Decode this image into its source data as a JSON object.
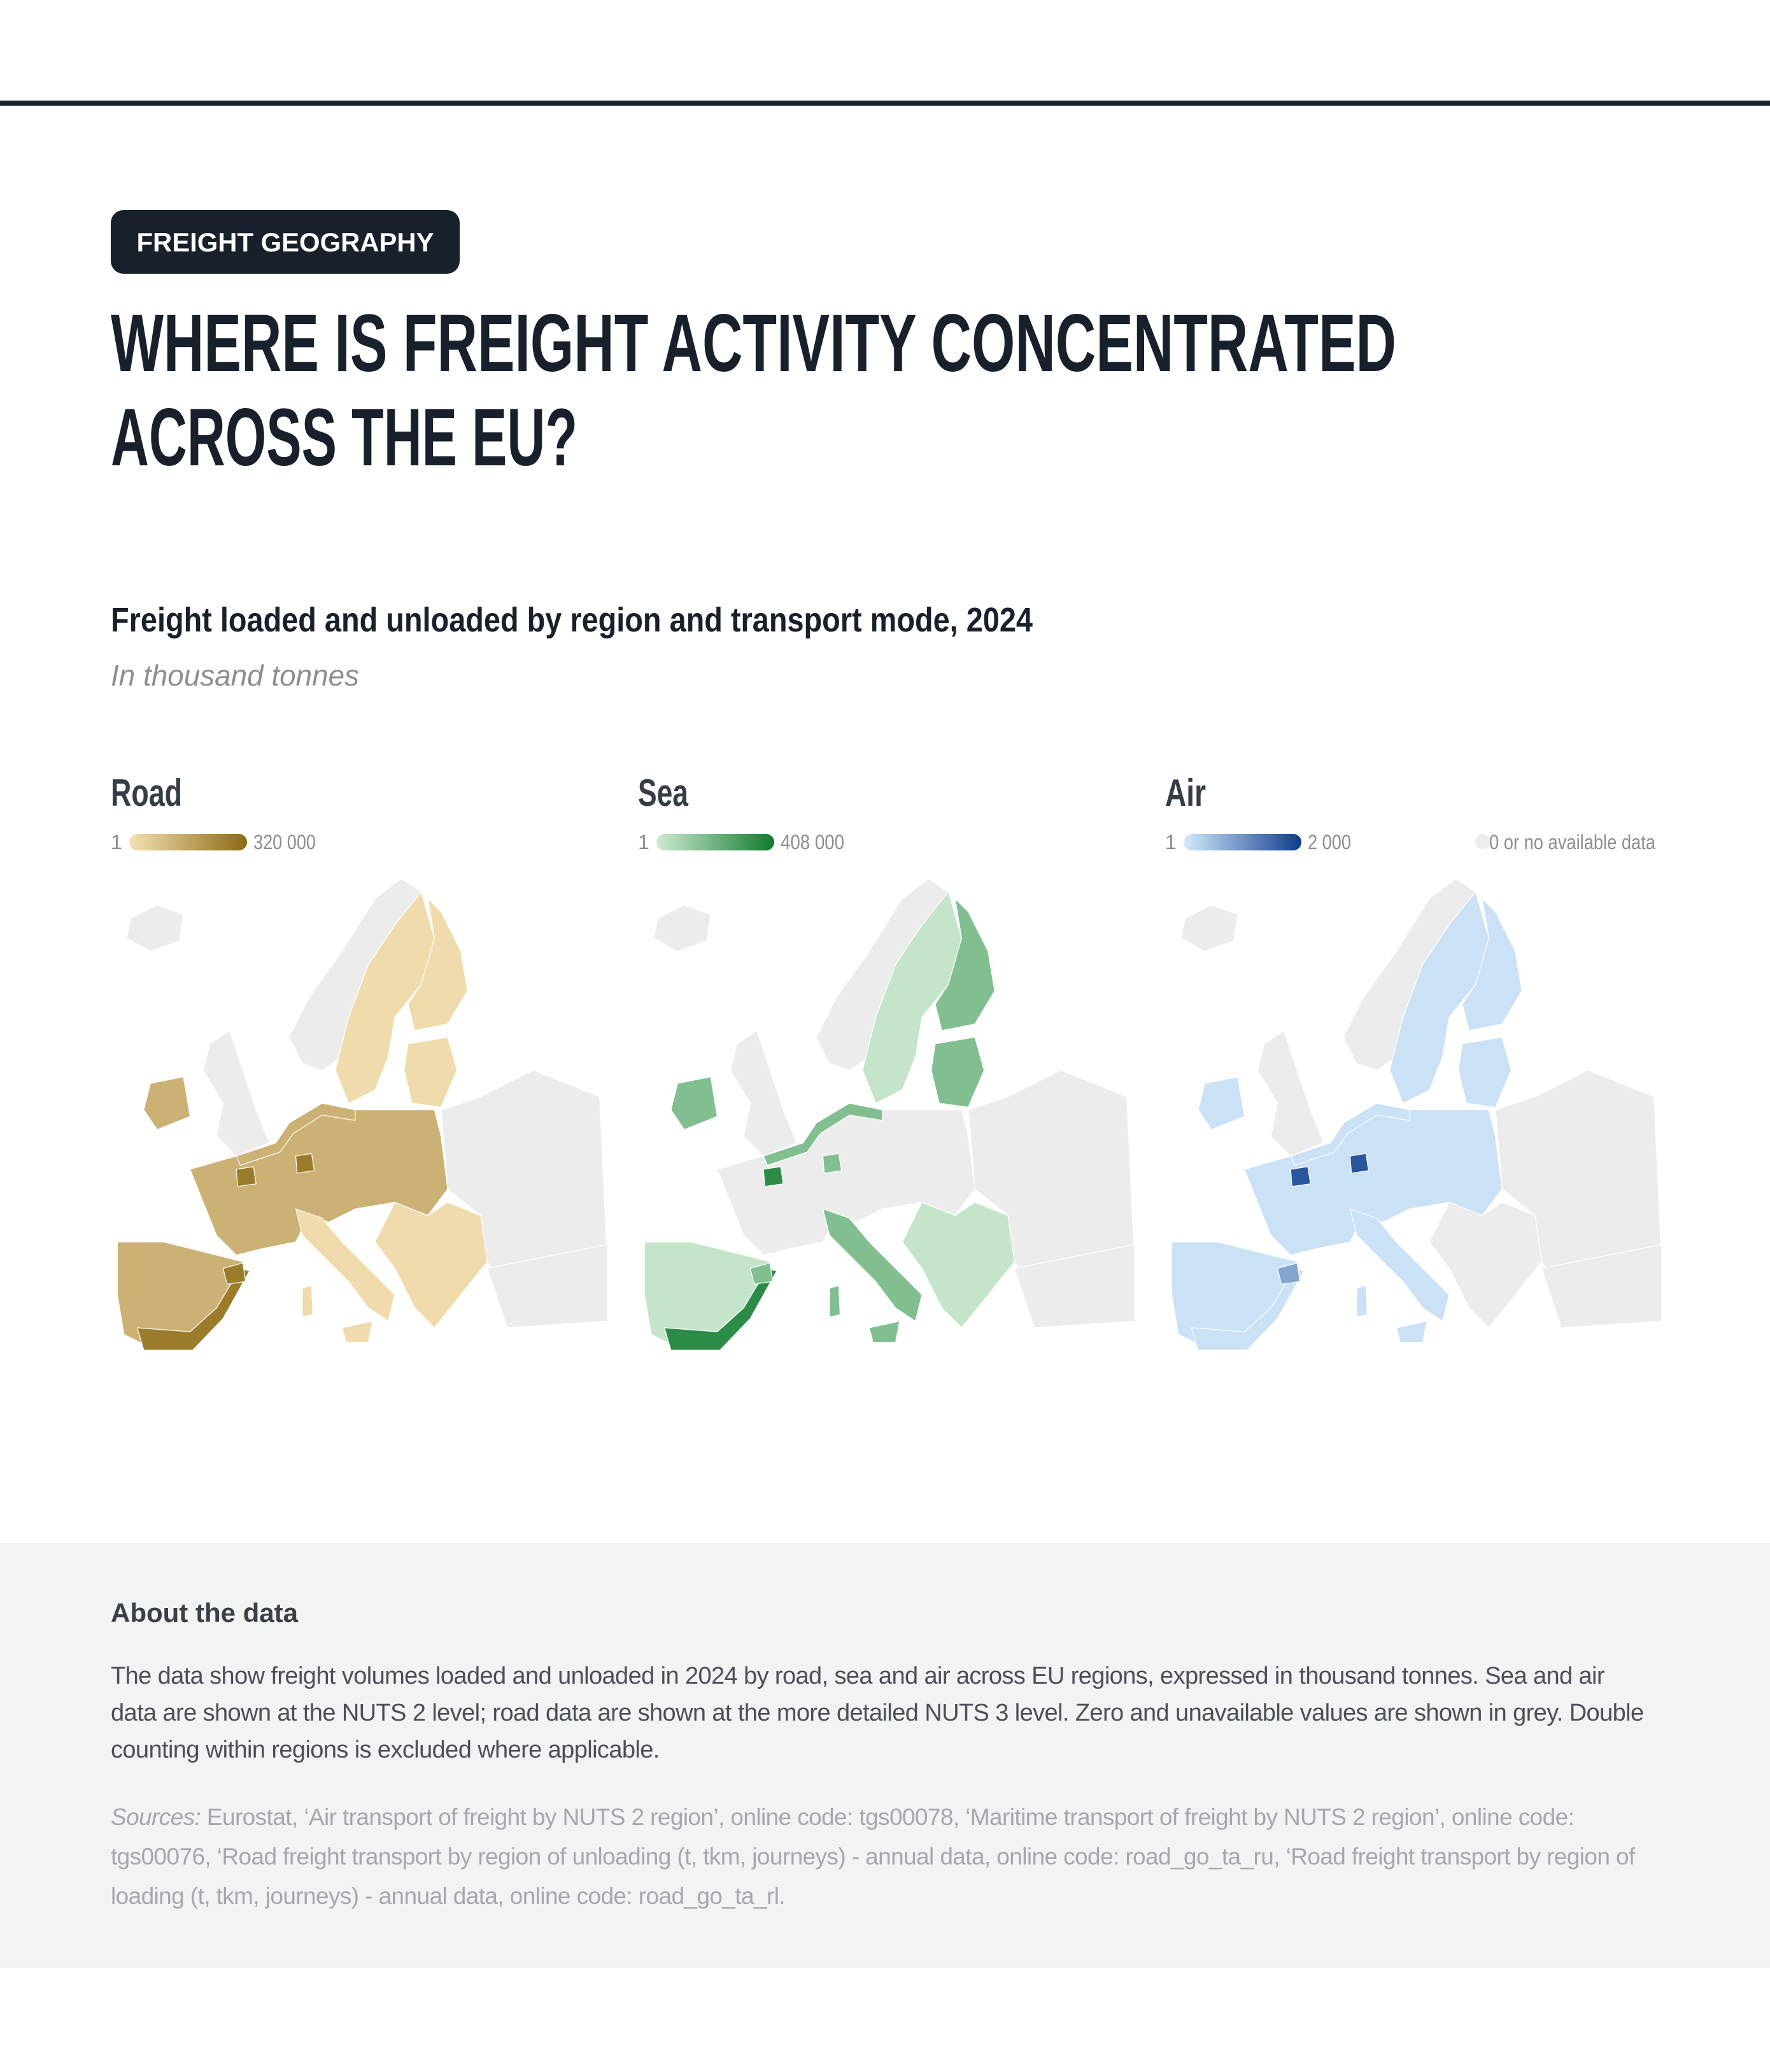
{
  "header": {
    "tag": "FREIGHT GEOGRAPHY",
    "title_lines": [
      "WHERE IS FREIGHT ACTIVITY CONCENTRATED",
      "ACROSS THE EU?"
    ]
  },
  "figure": {
    "title": "Freight loaded and unloaded by region and transport mode, 2024",
    "subtitle": "In thousand tonnes",
    "maps": [
      {
        "title": "Road",
        "legend_min": "1",
        "legend_max": "320 000",
        "colors": [
          "#f5e1b4",
          "#8b6a12"
        ]
      },
      {
        "title": "Sea",
        "legend_min": "1",
        "legend_max": "408 000",
        "colors": [
          "#cdebd2",
          "#0f7a2e"
        ]
      },
      {
        "title": "Air",
        "legend_min": "1",
        "legend_max": "2 000",
        "colors": [
          "#d4eafc",
          "#0d3c8c"
        ]
      }
    ],
    "no_data": {
      "label": "0 or no available data",
      "color": "#ececec"
    }
  },
  "about": {
    "heading": "About the data",
    "text": "The data show freight volumes loaded and unloaded in 2024 by road, sea and air across EU regions, expressed in thousand tonnes. Sea and air data are shown at the NUTS 2 level; road data are shown at the more detailed NUTS 3 level. Zero and unavailable values are shown in grey. Double counting within regions is excluded where applicable.",
    "sources_label": "Sources:",
    "sources": "Eurostat, ‘Air transport of freight by NUTS 2 region’, online code: tgs00078, ‘Maritime transport of freight by NUTS 2 region’, online code: tgs00076, ‘Road freight transport by region of unloading (t, tkm, journeys) - annual data, online code: road_go_ta_ru, ‘Road freight transport by region of loading (t, tkm, journeys) - annual data, online code: road_go_ta_rl."
  }
}
